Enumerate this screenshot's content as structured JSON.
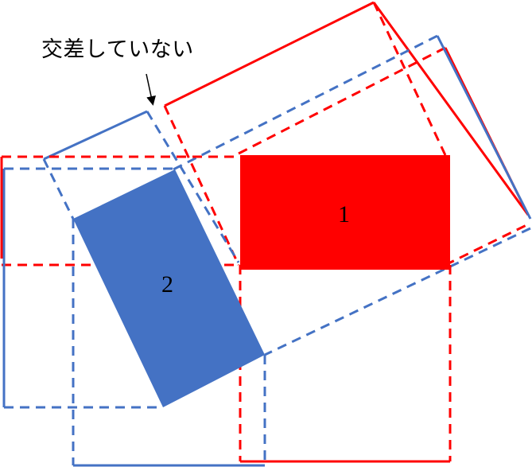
{
  "annotation": {
    "text": "交差していない"
  },
  "shapes": [
    {
      "id": "1",
      "label": "1",
      "color": "#FF0000"
    },
    {
      "id": "2",
      "label": "2",
      "color": "#4472C4"
    }
  ]
}
